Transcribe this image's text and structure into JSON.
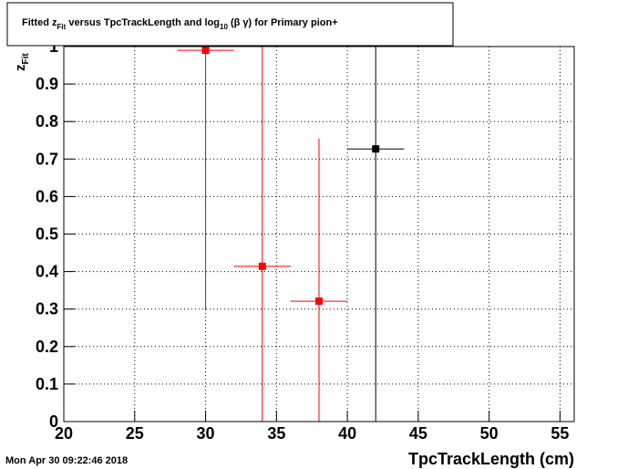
{
  "chart_data": {
    "type": "errorscatter",
    "title": [
      "Fitted  z",
      "Fit",
      "  versus TpcTrackLength and log",
      "10",
      " (β γ) for Primary pion+"
    ],
    "y_label": [
      "z",
      "Fit"
    ],
    "x_label": "TpcTrackLength (cm)",
    "timestamp": "Mon Apr 30 09:22:46 2018",
    "xlim": [
      20,
      56
    ],
    "ylim": [
      0,
      1
    ],
    "xticks": [
      20,
      25,
      30,
      35,
      40,
      45,
      50,
      55
    ],
    "yticks": [
      0,
      0.1,
      0.2,
      0.3,
      0.4,
      0.5,
      0.6,
      0.7,
      0.8,
      0.9,
      1
    ],
    "grid": true,
    "series": [
      {
        "color": "#ff0000",
        "x": [
          30,
          34,
          38
        ],
        "xerrors": [
          2,
          2,
          2
        ],
        "values": [
          0.99,
          0.414,
          0.321
        ],
        "errors": [
          0.69,
          0.6,
          0.434
        ]
      },
      {
        "color": "#000000",
        "x": [
          42
        ],
        "xerrors": [
          2
        ],
        "values": [
          0.727
        ],
        "errors": [
          0.75
        ]
      }
    ]
  }
}
